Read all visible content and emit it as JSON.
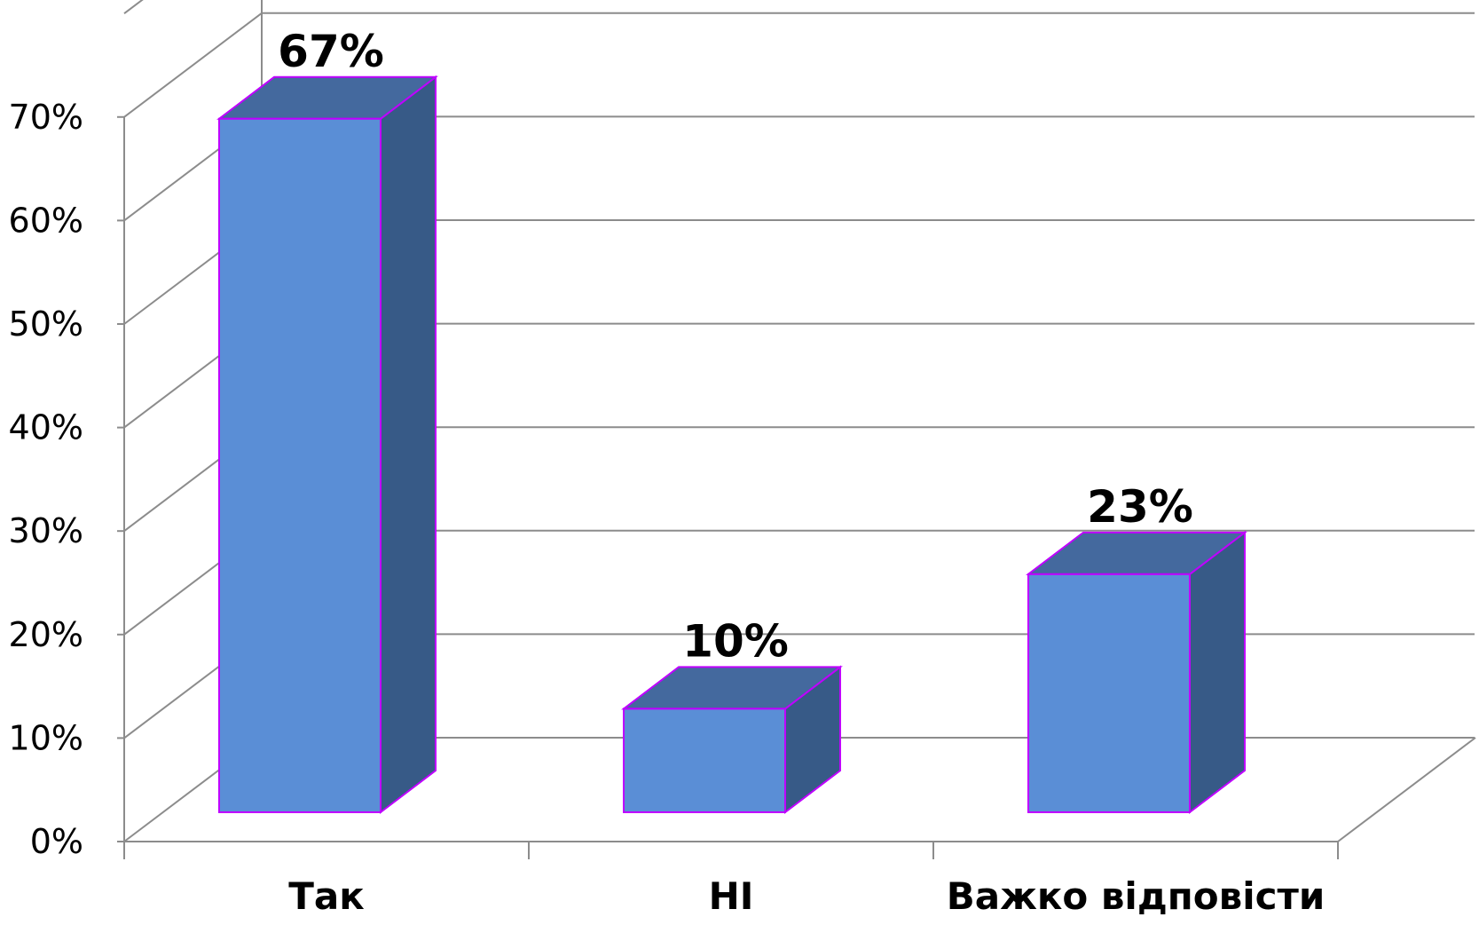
{
  "chart_data": {
    "type": "bar",
    "categories": [
      "Так",
      "НІ",
      "Важко відповісти"
    ],
    "values": [
      67,
      10,
      23
    ],
    "data_labels": [
      "67%",
      "10%",
      "23%"
    ],
    "ylim": [
      0,
      70
    ],
    "y_ticks": [
      "0%",
      "10%",
      "20%",
      "30%",
      "40%",
      "50%",
      "60%",
      "70%"
    ],
    "grid": true,
    "three_d": true,
    "colors": {
      "front": "#5a8ed6",
      "side": "#375a87",
      "top": "#44699e",
      "outline": "#bf00ff",
      "grid": "#8c8c8c"
    }
  }
}
